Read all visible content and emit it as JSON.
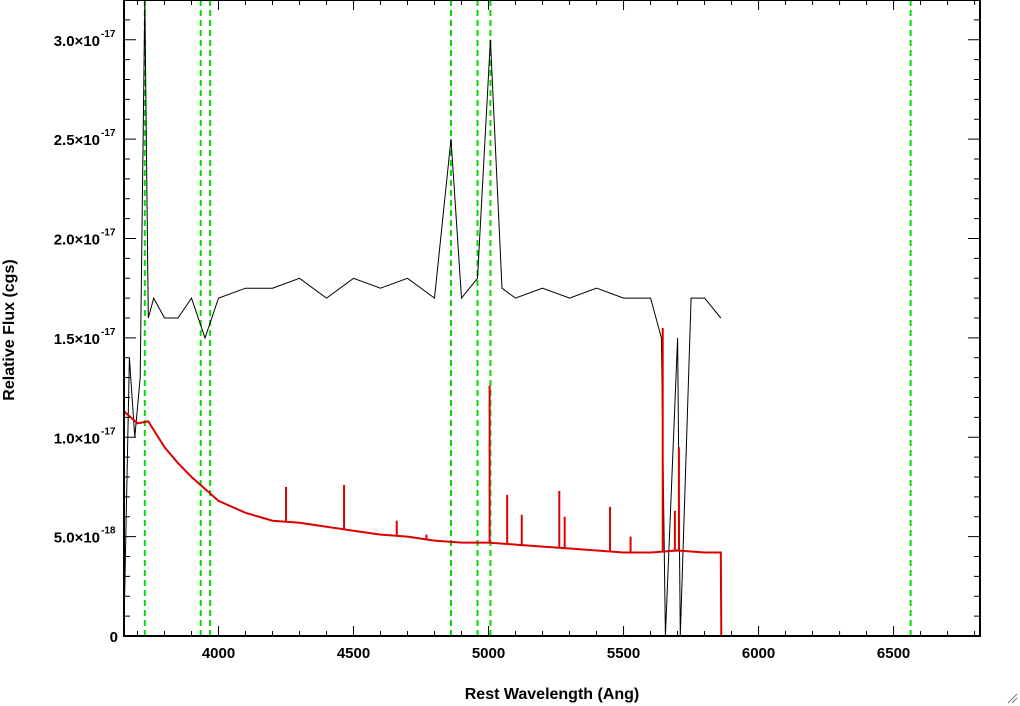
{
  "chart_data": {
    "type": "line",
    "title": "",
    "xlabel": "Rest Wavelength (Ang)",
    "ylabel": "Relative Flux (cgs)",
    "xlim": [
      3650,
      6820
    ],
    "ylim": [
      0,
      3.2e-17
    ],
    "x_ticks": [
      4000,
      4500,
      5000,
      5500,
      6000,
      6500
    ],
    "x_tick_labels": [
      "4000",
      "4500",
      "5000",
      "5500",
      "6000",
      "6500"
    ],
    "y_ticks": [
      {
        "value": 0,
        "mantissa": "0",
        "exponent": ""
      },
      {
        "value": 5e-18,
        "mantissa": "5.0×10",
        "exponent": "-18"
      },
      {
        "value": 1e-17,
        "mantissa": "1.0×10",
        "exponent": "-17"
      },
      {
        "value": 1.5e-17,
        "mantissa": "1.5×10",
        "exponent": "-17"
      },
      {
        "value": 2e-17,
        "mantissa": "2.0×10",
        "exponent": "-17"
      },
      {
        "value": 2.5e-17,
        "mantissa": "2.5×10",
        "exponent": "-17"
      },
      {
        "value": 3e-17,
        "mantissa": "3.0×10",
        "exponent": "-17"
      }
    ],
    "series": [
      {
        "color": "#000000",
        "style": "noisy spectrum",
        "x": [
          3650,
          3670,
          3690,
          3710,
          3727,
          3740,
          3760,
          3800,
          3850,
          3900,
          3950,
          4000,
          4100,
          4200,
          4300,
          4400,
          4500,
          4600,
          4700,
          4800,
          4861,
          4900,
          4959,
          5007,
          5050,
          5100,
          5200,
          5300,
          5400,
          5500,
          5600,
          5640,
          5655,
          5700,
          5710,
          5750,
          5800,
          5860
        ],
        "y": [
          5e-19,
          1.4e-17,
          1e-17,
          1.3e-17,
          3.2e-17,
          1.6e-17,
          1.7e-17,
          1.6e-17,
          1.6e-17,
          1.7e-17,
          1.5e-17,
          1.7e-17,
          1.75e-17,
          1.75e-17,
          1.8e-17,
          1.7e-17,
          1.8e-17,
          1.75e-17,
          1.8e-17,
          1.7e-17,
          2.5e-17,
          1.7e-17,
          1.8e-17,
          3e-17,
          1.75e-17,
          1.7e-17,
          1.75e-17,
          1.7e-17,
          1.75e-17,
          1.7e-17,
          1.7e-17,
          1.5e-17,
          0,
          1.5e-17,
          0,
          1.7e-17,
          1.7e-17,
          1.6e-17
        ]
      },
      {
        "color": "#dd0000",
        "style": "model continuum",
        "x": [
          3650,
          3700,
          3740,
          3800,
          3850,
          3900,
          3950,
          4000,
          4100,
          4200,
          4300,
          4400,
          4500,
          4600,
          4700,
          4800,
          4900,
          5000,
          5100,
          5200,
          5300,
          5400,
          5500,
          5600,
          5700,
          5800,
          5860,
          5862,
          6820
        ],
        "y": [
          1.13e-17,
          1.07e-17,
          1.08e-17,
          9.5e-18,
          8.7e-18,
          8e-18,
          7.4e-18,
          6.8e-18,
          6.2e-18,
          5.8e-18,
          5.7e-18,
          5.5e-18,
          5.3e-18,
          5.1e-18,
          5e-18,
          4.8e-18,
          4.7e-18,
          4.7e-18,
          4.6e-18,
          4.5e-18,
          4.4e-18,
          4.3e-18,
          4.2e-18,
          4.2e-18,
          4.3e-18,
          4.2e-18,
          4.2e-18,
          0,
          0
        ]
      }
    ],
    "emission_spikes": [
      {
        "x": 4250,
        "y": 7.5e-18
      },
      {
        "x": 4465,
        "y": 7.6e-18
      },
      {
        "x": 4660,
        "y": 5.8e-18
      },
      {
        "x": 4770,
        "y": 5.1e-18
      },
      {
        "x": 5004,
        "y": 1.26e-17
      },
      {
        "x": 5069,
        "y": 7.1e-18
      },
      {
        "x": 5123,
        "y": 6.1e-18
      },
      {
        "x": 5262,
        "y": 7.3e-18
      },
      {
        "x": 5282,
        "y": 6e-18
      },
      {
        "x": 5450,
        "y": 6.5e-18
      },
      {
        "x": 5526,
        "y": 5e-18
      },
      {
        "x": 5645,
        "y": 1.55e-17
      },
      {
        "x": 5690,
        "y": 6.3e-18
      },
      {
        "x": 5705,
        "y": 9.5e-18
      }
    ],
    "reference_lines": {
      "color": "#00dd00",
      "style": "dashed",
      "x": [
        3727,
        3934,
        3969,
        4861,
        4959,
        5007,
        6563
      ]
    },
    "grid": false,
    "legend": "none"
  }
}
